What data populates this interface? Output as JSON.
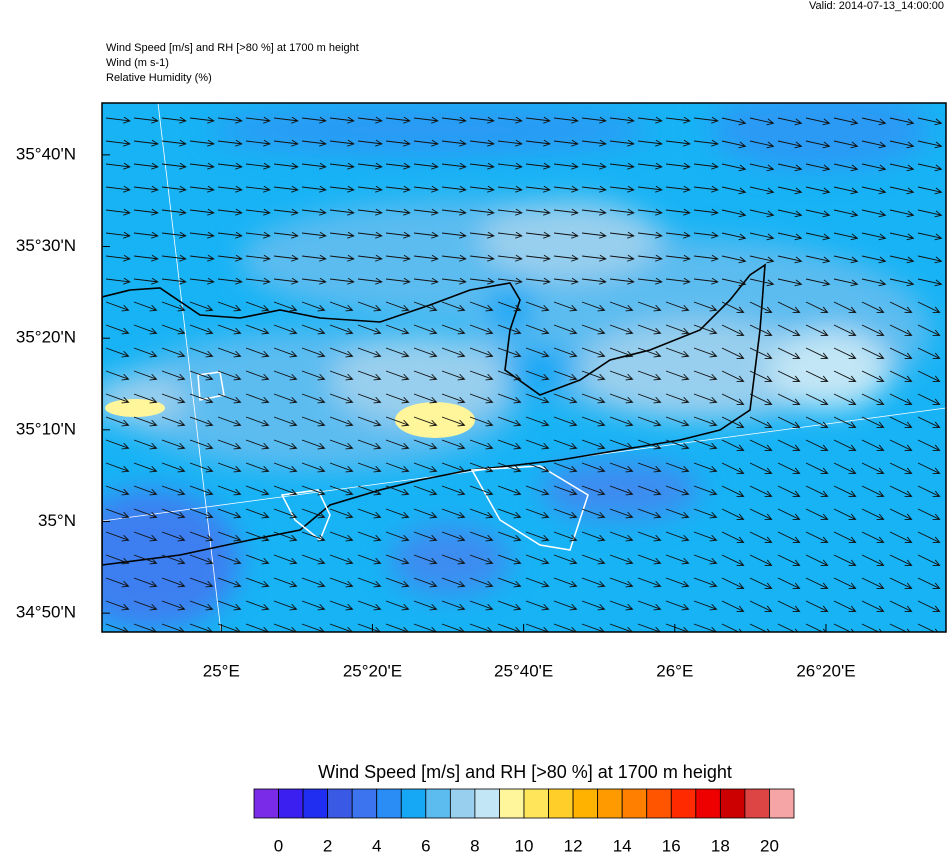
{
  "header": {
    "valid": "Valid: 2014-07-13_14:00:00",
    "lines": [
      "Wind Speed [m/s] and RH [>80 %] at 1700 m height",
      "Wind   (m s-1)",
      "Relative Humidity   (%)"
    ]
  },
  "map": {
    "xlim": [
      24.737,
      26.598
    ],
    "ylim": [
      34.799,
      35.761
    ],
    "xticks": [
      {
        "value": 25,
        "label": "25°E"
      },
      {
        "value": 25.3333,
        "label": "25°20'E"
      },
      {
        "value": 25.6667,
        "label": "25°40'E"
      },
      {
        "value": 26,
        "label": "26°E"
      },
      {
        "value": 26.3333,
        "label": "26°20'E"
      }
    ],
    "yticks": [
      {
        "value": 35.6667,
        "label": "35°40'N"
      },
      {
        "value": 35.5,
        "label": "35°30'N"
      },
      {
        "value": 35.3333,
        "label": "35°20'N"
      },
      {
        "value": 35.1667,
        "label": "35°10'N"
      },
      {
        "value": 35,
        "label": "35°N"
      },
      {
        "value": 34.8333,
        "label": "34°50'N"
      }
    ]
  },
  "colorbar": {
    "title": "Wind Speed [m/s] and RH [>80 %] at 1700 m height",
    "colors": [
      "#7a2be8",
      "#3a1ff0",
      "#1f2ef0",
      "#3a5ae6",
      "#3c73ee",
      "#2a8cf5",
      "#17a8f5",
      "#5cbcf0",
      "#99cfee",
      "#c2e6f5",
      "#fff59a",
      "#ffe55a",
      "#ffce28",
      "#ffb300",
      "#ff9a00",
      "#ff7f00",
      "#ff5500",
      "#ff2a00",
      "#ee0000",
      "#cc0000",
      "#dd4444",
      "#f5a5a5"
    ],
    "lim": [
      -1,
      21
    ],
    "ticks": [
      0,
      2,
      4,
      6,
      8,
      10,
      12,
      14,
      16,
      18,
      20
    ]
  }
}
